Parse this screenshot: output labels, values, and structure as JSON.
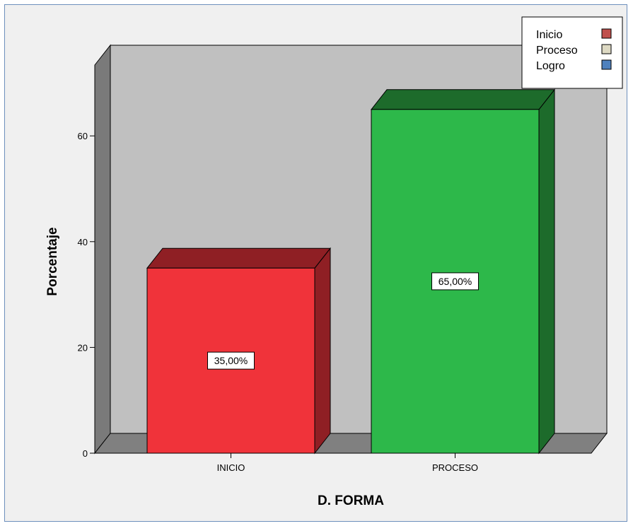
{
  "chart_data": {
    "type": "bar",
    "categories": [
      "INICIO",
      "PROCESO"
    ],
    "values": [
      35.0,
      65.0
    ],
    "data_labels": [
      "35,00%",
      "65,00%"
    ],
    "xlabel": "D. FORMA",
    "ylabel": "Porcentaje",
    "ylim": [
      0,
      70
    ],
    "yticks": [
      0,
      20,
      40,
      60
    ],
    "grid": false,
    "three_d": true,
    "bar_colors": [
      "#f0333a",
      "#2db84a"
    ],
    "bar_side_colors": [
      "#8f1f24",
      "#1d6b2b"
    ],
    "bar_top_colors": [
      "#8f1f24",
      "#1d6b2b"
    ],
    "wall_color": "#c0c0c0",
    "floor_color": "#808080",
    "legend": {
      "placement": "top-right",
      "entries": [
        {
          "label": "Inicio",
          "color": "#c0504d"
        },
        {
          "label": "Proceso",
          "color": "#ddd9c3"
        },
        {
          "label": "Logro",
          "color": "#4f81bd"
        }
      ]
    }
  }
}
